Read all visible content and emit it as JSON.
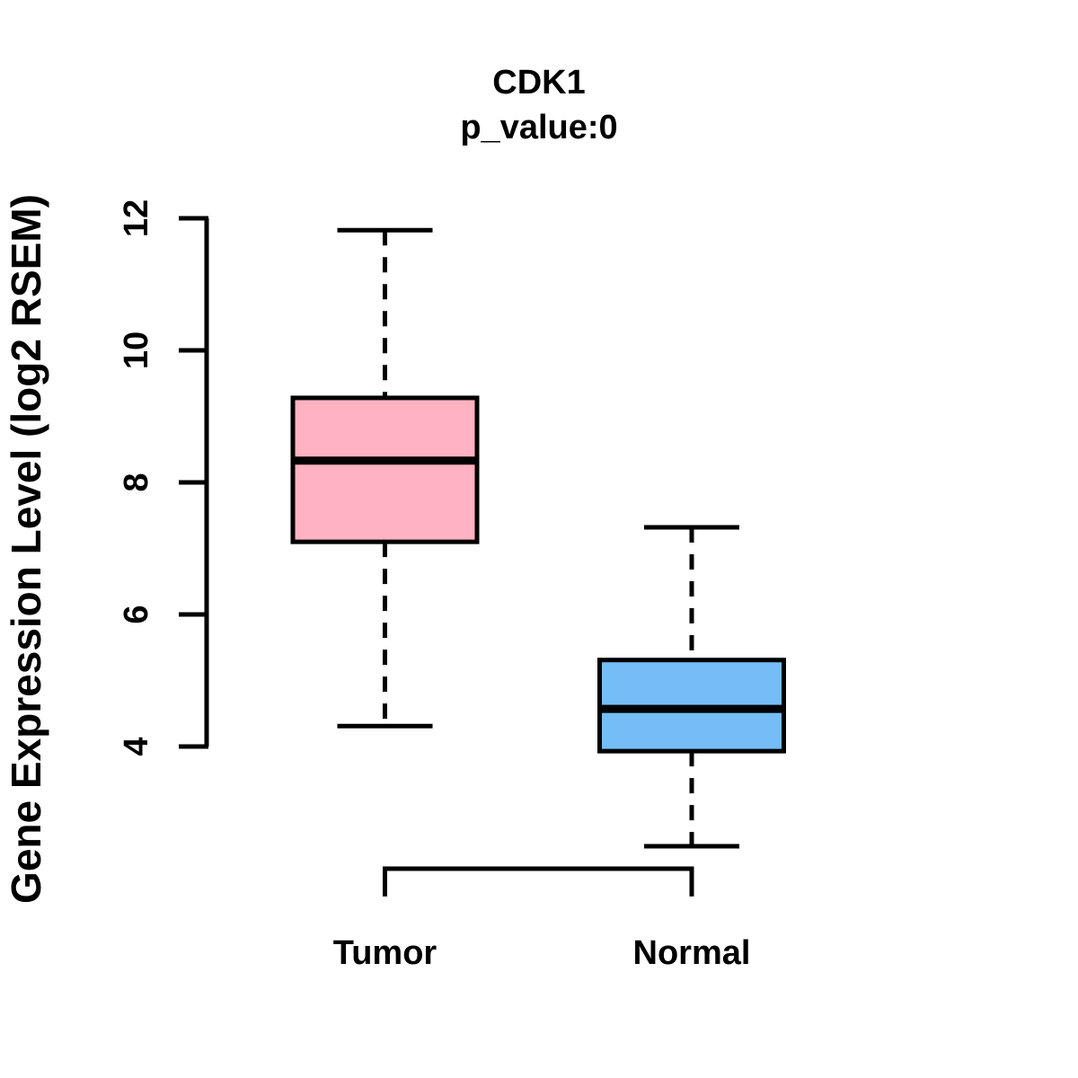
{
  "figure": {
    "background": "#FFFFFF",
    "line_color": "#000000"
  },
  "chart_data": {
    "type": "boxplot",
    "title": "CDK1",
    "subtitle": "p_value:0",
    "ylabel": "Gene Expression Level (log2 RSEM)",
    "xlabel": "",
    "categories": [
      "Tumor",
      "Normal"
    ],
    "y_ticks": [
      4,
      6,
      8,
      10,
      12
    ],
    "ylim": [
      1.6,
      12.3
    ],
    "grid": false,
    "legend": "none",
    "series": [
      {
        "name": "Tumor",
        "fill_color": "#FFB2C1",
        "whisker_low": 4.31,
        "q1": 7.1,
        "median": 8.33,
        "q3": 9.28,
        "whisker_high": 11.82,
        "outliers": []
      },
      {
        "name": "Normal",
        "fill_color": "#74BDF7",
        "whisker_low": 2.49,
        "q1": 3.93,
        "median": 4.57,
        "q3": 5.31,
        "whisker_high": 7.32,
        "outliers": []
      }
    ],
    "comparison_bracket": {
      "connects": [
        "Tumor",
        "Normal"
      ],
      "y": 2.15,
      "end_drop_to": 1.73
    }
  }
}
